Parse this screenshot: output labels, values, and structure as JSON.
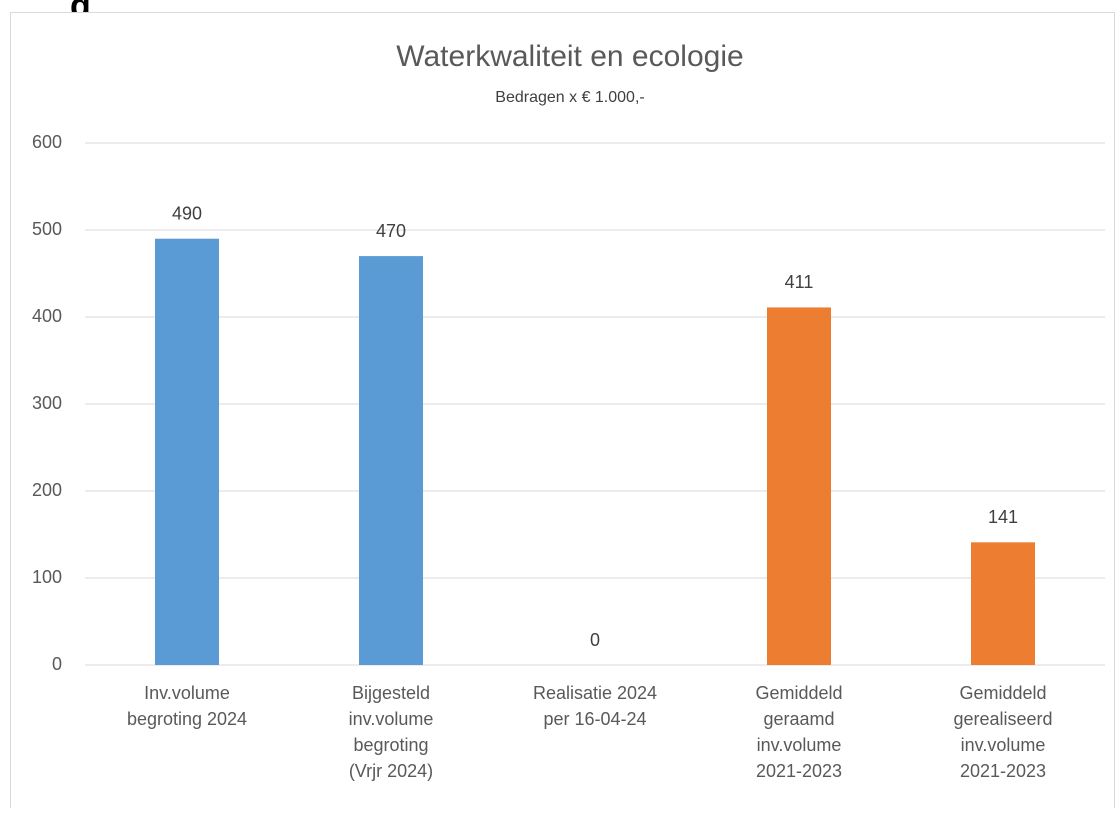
{
  "page_heading": "g",
  "chart_data": {
    "type": "bar",
    "title": "Waterkwaliteit en ecologie",
    "subtitle": "Bedragen x € 1.000,-",
    "categories": [
      [
        "Inv.volume",
        "begroting 2024"
      ],
      [
        "Bijgesteld",
        "inv.volume",
        "begroting",
        "(Vrjr 2024)"
      ],
      [
        "Realisatie 2024",
        "per 16-04-24"
      ],
      [
        "Gemiddeld",
        "geraamd",
        "inv.volume",
        "2021-2023"
      ],
      [
        "Gemiddeld",
        "gerealiseerd",
        "inv.volume",
        "2021-2023"
      ]
    ],
    "values": [
      490,
      470,
      0,
      411,
      141
    ],
    "colors": [
      "#5b9bd5",
      "#5b9bd5",
      "#5b9bd5",
      "#ed7d31",
      "#ed7d31"
    ],
    "ylim": [
      0,
      600
    ],
    "yticks": [
      0,
      100,
      200,
      300,
      400,
      500,
      600
    ],
    "grid": true
  }
}
